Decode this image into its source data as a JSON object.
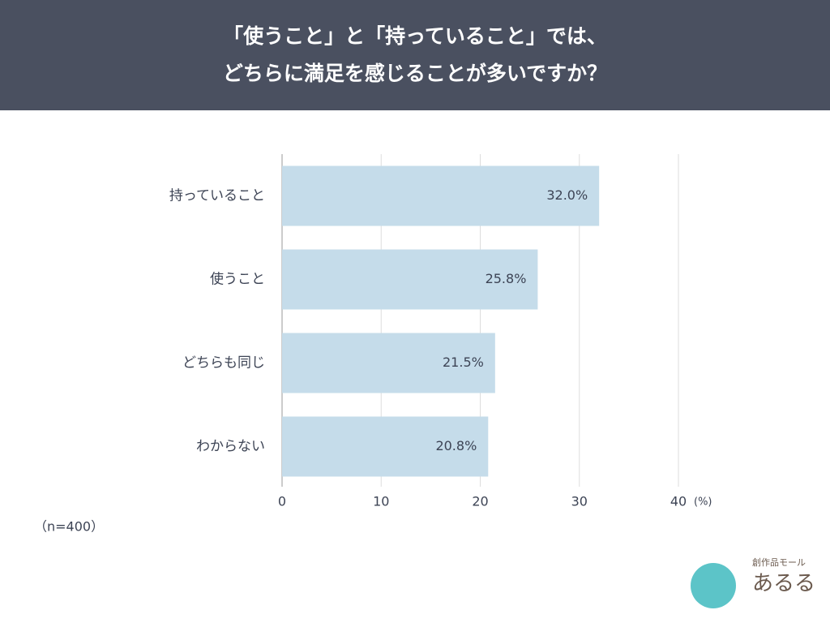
{
  "chart_data": {
    "type": "hbar",
    "title": [
      "「使うこと」と「持っていること」では、",
      "どちらに満足を感じることが多いですか？"
    ],
    "categories": [
      "持っていること",
      "使うこと",
      "どちらも同じ",
      "わからない"
    ],
    "values": [
      32.0,
      25.8,
      21.5,
      20.8
    ],
    "value_labels": [
      "32.0%",
      "25.8%",
      "21.5%",
      "20.8%"
    ],
    "color": "#c5dcea",
    "xlim": [
      0,
      40
    ],
    "xticks": [
      0,
      10,
      20,
      30,
      40
    ],
    "xlabel": "(%)",
    "grid": true,
    "note": "（n=400）",
    "logo": {
      "tagline": "創作品モール",
      "name": "あるる"
    }
  }
}
